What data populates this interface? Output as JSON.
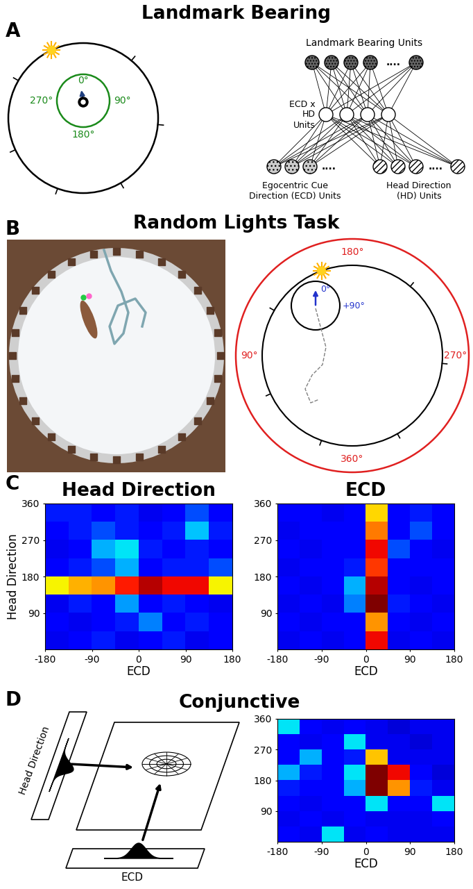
{
  "panels": [
    {
      "letter": "A",
      "title": "Landmark Bearing",
      "arena_labels": [
        "0°",
        "90°",
        "180°",
        "270°"
      ],
      "network": {
        "top": "Landmark Bearing Units",
        "middle": "ECD x HD Units",
        "bottom": [
          "Egocentric Cue Direction (ECD) Units",
          "Head Direction (HD) Units"
        ],
        "ellipsis": "...."
      }
    },
    {
      "letter": "B",
      "title": "Random Lights Task",
      "room_labels": [
        "180°",
        "90°",
        "270°",
        "360°"
      ],
      "rat_labels": [
        "0°",
        "+90°"
      ]
    },
    {
      "letter": "C"
    },
    {
      "letter": "D",
      "title": "Conjunctive",
      "schematic_labels": [
        "Head Direction",
        "ECD"
      ]
    }
  ],
  "chart_data": [
    {
      "type": "heatmap",
      "title": "Head Direction",
      "xlabel": "ECD",
      "ylabel": "Head Direction",
      "xlim": [
        -180,
        180
      ],
      "ylim": [
        0,
        360
      ],
      "xticks": [
        -180,
        -90,
        0,
        90,
        180
      ],
      "yticks": [
        90,
        180,
        270,
        360
      ],
      "color_range": [
        0,
        1
      ],
      "cells": [
        [
          0.15,
          0.15,
          0.12,
          0.15,
          0.1,
          0.12,
          0.2,
          0.12
        ],
        [
          0.12,
          0.15,
          0.2,
          0.15,
          0.12,
          0.15,
          0.32,
          0.15
        ],
        [
          0.1,
          0.12,
          0.3,
          0.35,
          0.15,
          0.12,
          0.15,
          0.12
        ],
        [
          0.12,
          0.15,
          0.2,
          0.3,
          0.12,
          0.15,
          0.15,
          0.2
        ],
        [
          0.65,
          0.72,
          0.75,
          0.88,
          0.95,
          0.9,
          0.9,
          0.65
        ],
        [
          0.1,
          0.15,
          0.12,
          0.28,
          0.12,
          0.15,
          0.12,
          0.1
        ],
        [
          0.12,
          0.1,
          0.12,
          0.15,
          0.25,
          0.12,
          0.15,
          0.12
        ],
        [
          0.1,
          0.12,
          0.15,
          0.1,
          0.12,
          0.15,
          0.1,
          0.12
        ]
      ]
    },
    {
      "type": "heatmap",
      "title": "ECD",
      "xlabel": "ECD",
      "xlim": [
        -180,
        180
      ],
      "ylim": [
        0,
        360
      ],
      "xticks": [
        -180,
        -90,
        0,
        90,
        180
      ],
      "yticks": [
        90,
        180,
        270,
        360
      ],
      "color_range": [
        0,
        1
      ],
      "cells": [
        [
          0.12,
          0.12,
          0.1,
          0.12,
          0.68,
          0.12,
          0.15,
          0.12
        ],
        [
          0.1,
          0.12,
          0.12,
          0.12,
          0.78,
          0.12,
          0.2,
          0.12
        ],
        [
          0.12,
          0.1,
          0.12,
          0.12,
          0.9,
          0.2,
          0.12,
          0.1
        ],
        [
          0.1,
          0.12,
          0.12,
          0.15,
          0.85,
          0.12,
          0.12,
          0.12
        ],
        [
          0.12,
          0.1,
          0.12,
          0.3,
          0.95,
          0.12,
          0.1,
          0.12
        ],
        [
          0.1,
          0.12,
          0.1,
          0.25,
          1.0,
          0.15,
          0.12,
          0.1
        ],
        [
          0.12,
          0.1,
          0.12,
          0.12,
          0.75,
          0.12,
          0.1,
          0.12
        ],
        [
          0.1,
          0.12,
          0.1,
          0.12,
          0.9,
          0.1,
          0.12,
          0.1
        ]
      ]
    },
    {
      "type": "heatmap",
      "xlabel": "ECD",
      "xlim": [
        -180,
        180
      ],
      "ylim": [
        0,
        360
      ],
      "xticks": [
        -180,
        -90,
        0,
        90,
        180
      ],
      "yticks": [
        90,
        180,
        270,
        360
      ],
      "color_range": [
        0,
        1
      ],
      "cells": [
        [
          0.35,
          0.12,
          0.1,
          0.12,
          0.1,
          0.08,
          0.1,
          0.1
        ],
        [
          0.12,
          0.1,
          0.12,
          0.35,
          0.1,
          0.1,
          0.08,
          0.1
        ],
        [
          0.12,
          0.3,
          0.12,
          0.15,
          0.7,
          0.1,
          0.1,
          0.1
        ],
        [
          0.3,
          0.15,
          0.12,
          0.35,
          1.0,
          0.9,
          0.12,
          0.08
        ],
        [
          0.15,
          0.12,
          0.12,
          0.3,
          1.0,
          0.75,
          0.15,
          0.1
        ],
        [
          0.12,
          0.1,
          0.12,
          0.12,
          0.35,
          0.12,
          0.12,
          0.35
        ],
        [
          0.1,
          0.12,
          0.1,
          0.12,
          0.1,
          0.1,
          0.1,
          0.12
        ],
        [
          0.12,
          0.1,
          0.35,
          0.1,
          0.12,
          0.1,
          0.1,
          0.1
        ]
      ]
    }
  ]
}
